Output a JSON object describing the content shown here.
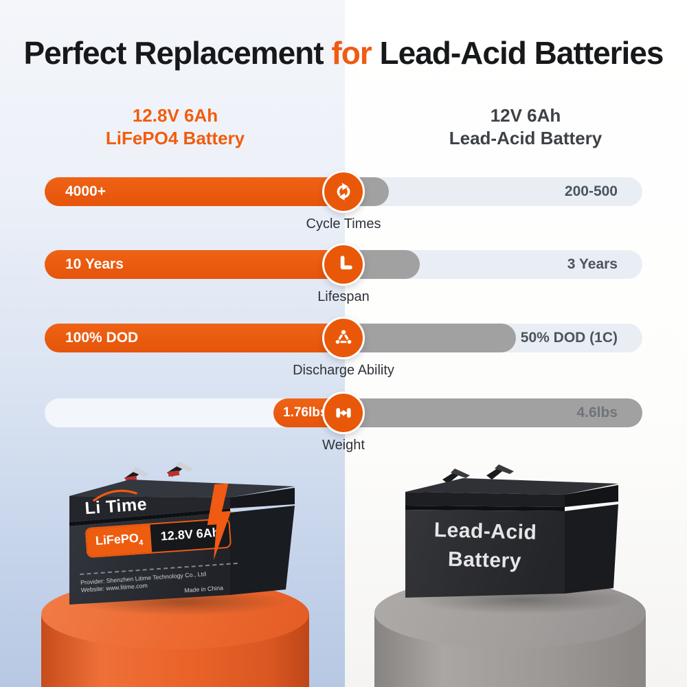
{
  "accent_color": "#EE5C10",
  "gray_bar_color": "#A1A1A1",
  "title": {
    "part1": "Perfect Replacement ",
    "highlight": "for",
    "part2": " Lead-Acid Batteries"
  },
  "columns": {
    "left": {
      "line1": "12.8V 6Ah",
      "line2": "LiFePO4 Battery"
    },
    "right": {
      "line1": "12V 6Ah",
      "line2": "Lead-Acid Battery"
    }
  },
  "chart_data": {
    "type": "bar",
    "title": "Perfect Replacement for Lead-Acid Batteries",
    "legend_position": "top",
    "series": [
      {
        "name": "12.8V 6Ah LiFePO4 Battery",
        "color": "#EE5C10"
      },
      {
        "name": "12V 6Ah Lead-Acid Battery",
        "color": "#A1A1A1"
      }
    ],
    "categories": [
      "Cycle Times",
      "Lifespan",
      "Discharge Ability",
      "Weight"
    ],
    "rows": [
      {
        "label": "Cycle Times",
        "icon": "refresh-icon",
        "lifepo4_value": "4000+",
        "lead_acid_value": "200-500",
        "lifepo4_fill": 1.0,
        "lead_acid_fill": 0.18
      },
      {
        "label": "Lifespan",
        "icon": "clock-icon",
        "lifepo4_value": "10 Years",
        "lead_acid_value": "3 Years",
        "lifepo4_fill": 1.0,
        "lead_acid_fill": 0.28
      },
      {
        "label": "Discharge Ability",
        "icon": "molecule-icon",
        "lifepo4_value": "100% DOD",
        "lead_acid_value": "50% DOD (1C)",
        "lifepo4_fill": 1.0,
        "lead_acid_fill": 0.59
      },
      {
        "label": "Weight",
        "icon": "dumbbell-icon",
        "lifepo4_value": "1.76lbs",
        "lead_acid_value": "4.6lbs",
        "lifepo4_fill": 0.26,
        "lead_acid_fill": 1.0
      }
    ]
  },
  "batteries": {
    "litime": {
      "logo_part1": "Li",
      "logo_part2": "Time",
      "chem": "LiFePO",
      "chem_sub": "4",
      "spec": "12.8V 6Ah",
      "provider_line": "Provider: Shenzhen Litime Technology Co., Ltd",
      "website_line": "Website: www.litime.com",
      "made_in": "Made in China"
    },
    "lead_acid": {
      "line1": "Lead-Acid",
      "line2": "Battery"
    }
  }
}
